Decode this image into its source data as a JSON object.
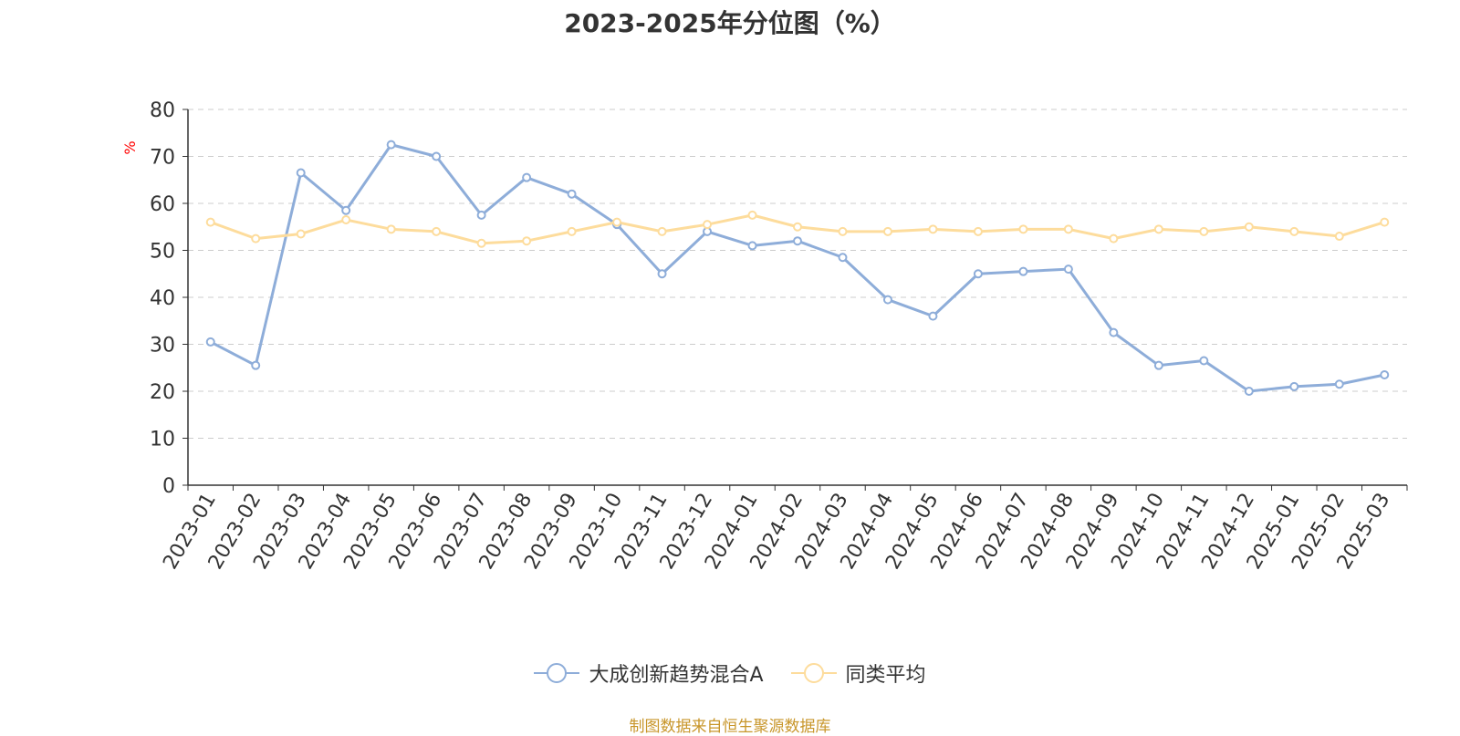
{
  "title": "2023-2025年分位图（%）",
  "source_note": "制图数据来自恒生聚源数据库",
  "colors": {
    "series_a": "#8eadd9",
    "series_b": "#fddc9c",
    "grid": "#cccccc",
    "axis": "#333333",
    "unit_label": "#ff0000",
    "source": "#c8962a"
  },
  "chart_data": {
    "type": "line",
    "title": "2023-2025年分位图（%）",
    "ylabel": "%",
    "ylim": [
      0,
      80
    ],
    "yticks": [
      0,
      10,
      20,
      30,
      40,
      50,
      60,
      70,
      80
    ],
    "grid": true,
    "legend_position": "bottom",
    "categories": [
      "2023-01",
      "2023-02",
      "2023-03",
      "2023-04",
      "2023-05",
      "2023-06",
      "2023-07",
      "2023-08",
      "2023-09",
      "2023-10",
      "2023-11",
      "2023-12",
      "2024-01",
      "2024-02",
      "2024-03",
      "2024-04",
      "2024-05",
      "2024-06",
      "2024-07",
      "2024-08",
      "2024-09",
      "2024-10",
      "2024-11",
      "2024-12",
      "2025-01",
      "2025-02",
      "2025-03"
    ],
    "series": [
      {
        "name": "大成创新趋势混合A",
        "values": [
          30.5,
          25.5,
          66.5,
          58.5,
          72.5,
          70,
          57.5,
          65.5,
          62,
          55.5,
          45,
          54,
          51,
          52,
          48.5,
          39.5,
          36,
          45,
          45.5,
          46,
          32.5,
          25.5,
          26.5,
          20,
          21,
          21.5,
          23.5
        ]
      },
      {
        "name": "同类平均",
        "values": [
          56,
          52.5,
          53.5,
          56.5,
          54.5,
          54,
          51.5,
          52,
          54,
          56,
          54,
          55.5,
          57.5,
          55,
          54,
          54,
          54.5,
          54,
          54.5,
          54.5,
          52.5,
          54.5,
          54,
          55,
          54,
          53,
          56
        ]
      }
    ]
  }
}
